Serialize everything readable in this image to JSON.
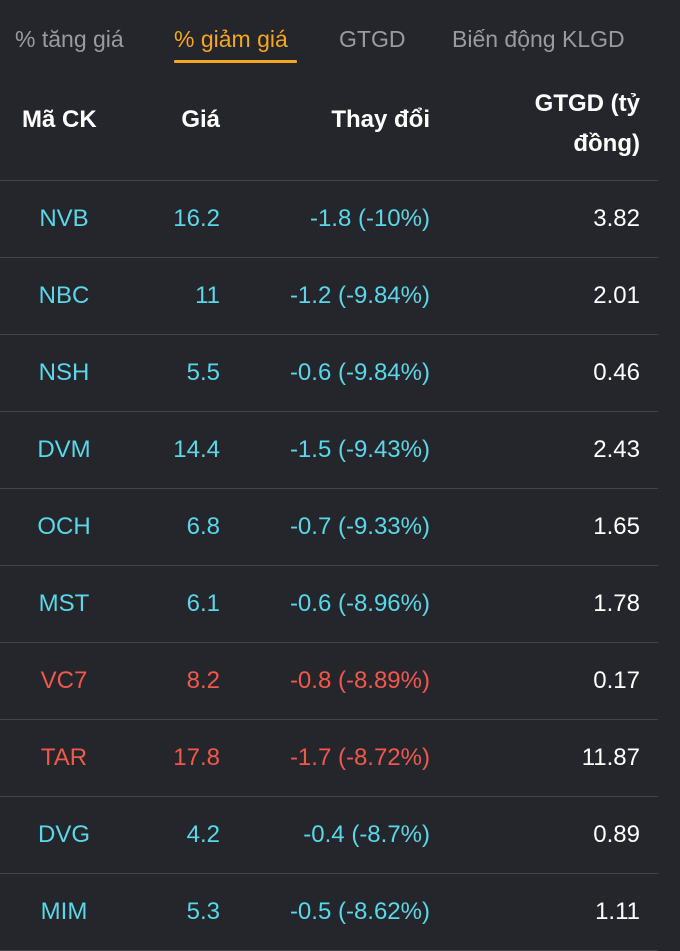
{
  "tabs": [
    {
      "label": "% tăng giá",
      "active": false
    },
    {
      "label": "% giảm giá",
      "active": true
    },
    {
      "label": "GTGD",
      "active": false
    },
    {
      "label": "Biến động KLGD",
      "active": false
    }
  ],
  "columns": {
    "code": "Mã CK",
    "price": "Giá",
    "change": "Thay đổi",
    "value_line1": "GTGD (tỷ",
    "value_line2": "đồng)"
  },
  "colors": {
    "cyan": "#5ad7e8",
    "red": "#f0584d",
    "accent": "#f5a623"
  },
  "rows": [
    {
      "code": "NVB",
      "price": "16.2",
      "change": "-1.8 (-10%)",
      "value": "3.82",
      "color": "cyan"
    },
    {
      "code": "NBC",
      "price": "11",
      "change": "-1.2 (-9.84%)",
      "value": "2.01",
      "color": "cyan"
    },
    {
      "code": "NSH",
      "price": "5.5",
      "change": "-0.6 (-9.84%)",
      "value": "0.46",
      "color": "cyan"
    },
    {
      "code": "DVM",
      "price": "14.4",
      "change": "-1.5 (-9.43%)",
      "value": "2.43",
      "color": "cyan"
    },
    {
      "code": "OCH",
      "price": "6.8",
      "change": "-0.7 (-9.33%)",
      "value": "1.65",
      "color": "cyan"
    },
    {
      "code": "MST",
      "price": "6.1",
      "change": "-0.6 (-8.96%)",
      "value": "1.78",
      "color": "cyan"
    },
    {
      "code": "VC7",
      "price": "8.2",
      "change": "-0.8 (-8.89%)",
      "value": "0.17",
      "color": "red"
    },
    {
      "code": "TAR",
      "price": "17.8",
      "change": "-1.7 (-8.72%)",
      "value": "11.87",
      "color": "red"
    },
    {
      "code": "DVG",
      "price": "4.2",
      "change": "-0.4 (-8.7%)",
      "value": "0.89",
      "color": "cyan"
    },
    {
      "code": "MIM",
      "price": "5.3",
      "change": "-0.5 (-8.62%)",
      "value": "1.11",
      "color": "cyan"
    }
  ]
}
